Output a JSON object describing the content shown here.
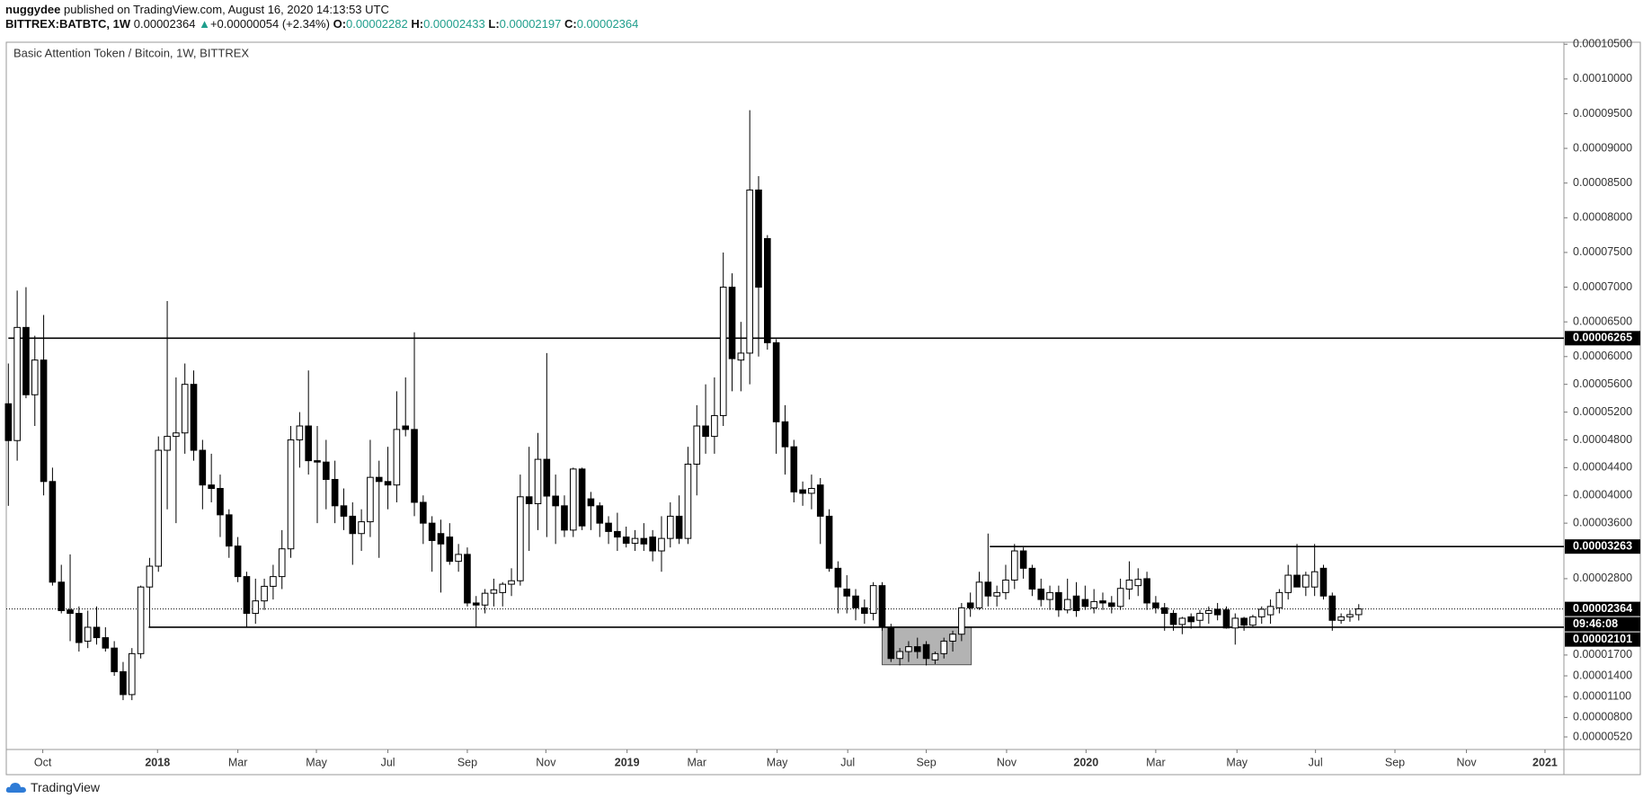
{
  "header": {
    "author": "nuggydee",
    "published": " published on TradingView.com, August 16, 2020 14:13:53 UTC",
    "symbol": "BITTREX:BATBTC, 1W",
    "last": "0.00002364",
    "change_arrow": "▲",
    "change": "+0.00000054 (+2.34%)",
    "ohlc": [
      {
        "label": "O:",
        "value": "0.00002282"
      },
      {
        "label": "H:",
        "value": "0.00002433"
      },
      {
        "label": "L:",
        "value": "0.00002197"
      },
      {
        "label": "C:",
        "value": "0.00002364"
      }
    ]
  },
  "chart_data": {
    "type": "candlestick",
    "title": "Basic Attention Token / Bitcoin, 1W, BITTREX",
    "up_color": "#ffffff",
    "down_color": "#000000",
    "open": [
      5.32e-05,
      4.79e-05,
      6.42e-05,
      5.45e-05,
      5.95e-05,
      4.2e-05,
      2.75e-05,
      2.35e-05,
      2.3e-05,
      1.9e-05,
      2.1e-05,
      1.95e-05,
      1.8e-05,
      1.46e-05,
      1.13e-05,
      1.72e-05,
      2.68e-05,
      2.98e-05,
      4.65e-05,
      4.85e-05,
      4.9e-05,
      5.6e-05,
      4.65e-05,
      4.15e-05,
      4.1e-05,
      3.72e-05,
      3.27e-05,
      2.83e-05,
      2.3e-05,
      2.48e-05,
      2.69e-05,
      2.83e-05,
      3.23e-05,
      4.8e-05,
      5e-05,
      4.5e-05,
      4.48e-05,
      4.23e-05,
      3.85e-05,
      3.7e-05,
      3.45e-05,
      3.62e-05,
      4.26e-05,
      4.2e-05,
      4.15e-05,
      5e-05,
      4.95e-05,
      3.9e-05,
      3.6e-05,
      3.45e-05,
      3.4e-05,
      3.05e-05,
      3.15e-05,
      2.45e-05,
      2.42e-05,
      2.59e-05,
      2.6e-05,
      2.72e-05,
      2.77e-05,
      3.98e-05,
      3.88e-05,
      4.52e-05,
      3.99e-05,
      3.85e-05,
      3.5e-05,
      4.38e-05,
      3.95e-05,
      3.85e-05,
      3.6e-05,
      3.48e-05,
      3.4e-05,
      3.31e-05,
      3.38e-05,
      3.4e-05,
      3.2e-05,
      3.38e-05,
      3.7e-05,
      3.38e-05,
      4.45e-05,
      5e-05,
      4.85e-05,
      5.15e-05,
      7e-05,
      5.95e-05,
      6.05e-05,
      8.4e-05,
      7.7e-05,
      6.2e-05,
      5.06e-05,
      4.7e-05,
      4.08e-05,
      4.03e-05,
      4.15e-05,
      3.7e-05,
      2.95e-05,
      2.65e-05,
      2.55e-05,
      2.38e-05,
      2.3e-05,
      2.7e-05,
      2.1e-05,
      1.65e-05,
      1.75e-05,
      1.82e-05,
      1.85e-05,
      1.63e-05,
      1.72e-05,
      1.9e-05,
      2e-05,
      2.45e-05,
      2.38e-05,
      2.75e-05,
      2.55e-05,
      2.6e-05,
      2.78e-05,
      3.2e-05,
      2.95e-05,
      2.65e-05,
      2.5e-05,
      2.6e-05,
      2.35e-05,
      2.55e-05,
      2.5e-05,
      2.38e-05,
      2.48e-05,
      2.45e-05,
      2.4e-05,
      2.65e-05,
      2.7e-05,
      2.8e-05,
      2.45e-05,
      2.38e-05,
      2.3e-05,
      2.14e-05,
      2.25e-05,
      2.2e-05,
      2.3e-05,
      2.36e-05,
      2.35e-05,
      2.09e-05,
      2.23e-05,
      2.13e-05,
      2.25e-05,
      2.28e-05,
      2.38e-05,
      2.6e-05,
      2.85e-05,
      2.68e-05,
      2.68e-05,
      2.95e-05,
      2.55e-05,
      2.2e-05,
      2.25e-05,
      2.282e-05
    ],
    "high": [
      5.9e-05,
      6.95e-05,
      7e-05,
      6.3e-05,
      6.6e-05,
      4.4e-05,
      3e-05,
      3.15e-05,
      2.4e-05,
      2.34e-05,
      2.4e-05,
      2.1e-05,
      1.9e-05,
      1.6e-05,
      1.8e-05,
      2.7e-05,
      3.1e-05,
      4.85e-05,
      6.8e-05,
      5.7e-05,
      5.9e-05,
      5.8e-05,
      4.8e-05,
      4.6e-05,
      4.3e-05,
      3.8e-05,
      3.4e-05,
      2.9e-05,
      2.8e-05,
      2.8e-05,
      3e-05,
      3.5e-05,
      5e-05,
      5.2e-05,
      5.8e-05,
      5e-05,
      4.8e-05,
      4.5e-05,
      4.1e-05,
      3.9e-05,
      3.8e-05,
      4.8e-05,
      4.5e-05,
      4.7e-05,
      5.5e-05,
      5.7e-05,
      6.35e-05,
      4e-05,
      3.7e-05,
      3.65e-05,
      3.6e-05,
      3.3e-05,
      3.25e-05,
      2.55e-05,
      2.65e-05,
      2.8e-05,
      2.75e-05,
      2.95e-05,
      4.3e-05,
      4.7e-05,
      4.9e-05,
      6.05e-05,
      4.3e-05,
      4e-05,
      4.4e-05,
      4.4e-05,
      4.05e-05,
      3.9e-05,
      3.7e-05,
      3.75e-05,
      3.55e-05,
      3.5e-05,
      3.6e-05,
      3.5e-05,
      3.7e-05,
      3.9e-05,
      4e-05,
      4.7e-05,
      5.3e-05,
      5.6e-05,
      5.7e-05,
      7.5e-05,
      7.2e-05,
      6.5e-05,
      9.55e-05,
      8.6e-05,
      7.75e-05,
      6.25e-05,
      5.3e-05,
      4.8e-05,
      4.2e-05,
      4.3e-05,
      4.25e-05,
      3.8e-05,
      3.05e-05,
      2.85e-05,
      2.65e-05,
      2.5e-05,
      2.75e-05,
      2.75e-05,
      2.15e-05,
      1.8e-05,
      1.9e-05,
      1.95e-05,
      1.9e-05,
      1.75e-05,
      1.95e-05,
      2.05e-05,
      2.45e-05,
      2.6e-05,
      2.9e-05,
      3.45e-05,
      2.7e-05,
      3e-05,
      3.3e-05,
      3.25e-05,
      3e-05,
      2.8e-05,
      2.7e-05,
      2.7e-05,
      2.8e-05,
      2.75e-05,
      2.7e-05,
      2.65e-05,
      2.6e-05,
      2.55e-05,
      2.8e-05,
      3.05e-05,
      2.95e-05,
      2.9e-05,
      2.55e-05,
      2.45e-05,
      2.35e-05,
      2.25e-05,
      2.3e-05,
      2.35e-05,
      2.4e-05,
      2.45e-05,
      2.4e-05,
      2.3e-05,
      2.25e-05,
      2.28e-05,
      2.4e-05,
      2.5e-05,
      2.65e-05,
      3e-05,
      3.3e-05,
      2.9e-05,
      3.3e-05,
      3e-05,
      2.6e-05,
      2.3e-05,
      2.35e-05,
      2.433e-05
    ],
    "low": [
      3.85e-05,
      4.5e-05,
      5.4e-05,
      5e-05,
      4e-05,
      2.7e-05,
      2.3e-05,
      1.9e-05,
      1.75e-05,
      1.8e-05,
      1.85e-05,
      1.75e-05,
      1.4e-05,
      1.05e-05,
      1.05e-05,
      1.65e-05,
      2.1e-05,
      2.9e-05,
      3.8e-05,
      3.6e-05,
      4.6e-05,
      4.5e-05,
      3.8e-05,
      3.9e-05,
      3.4e-05,
      3.1e-05,
      2.75e-05,
      2.1e-05,
      2.15e-05,
      2.35e-05,
      2.5e-05,
      2.65e-05,
      3.1e-05,
      4.4e-05,
      4.3e-05,
      3.6e-05,
      3.8e-05,
      3.6e-05,
      3.5e-05,
      3e-05,
      3.2e-05,
      3.4e-05,
      3.1e-05,
      3.8e-05,
      3.9e-05,
      4.85e-05,
      3.7e-05,
      3.3e-05,
      2.9e-05,
      2.6e-05,
      3e-05,
      2.9e-05,
      2.4e-05,
      2.1e-05,
      2.3e-05,
      2.4e-05,
      2.4e-05,
      2.55e-05,
      2.7e-05,
      3.2e-05,
      3.5e-05,
      3.4e-05,
      3.3e-05,
      3.4e-05,
      3.4e-05,
      3.5e-05,
      3.5e-05,
      3.4e-05,
      3.3e-05,
      3.2e-05,
      3.25e-05,
      3.2e-05,
      3.2e-05,
      3.05e-05,
      2.9e-05,
      3.25e-05,
      3.3e-05,
      3.3e-05,
      4e-05,
      4.6e-05,
      4.6e-05,
      5e-05,
      5.5e-05,
      5.5e-05,
      5.6e-05,
      6e-05,
      6.1e-05,
      4.6e-05,
      4.3e-05,
      3.9e-05,
      3.85e-05,
      3.8e-05,
      3.3e-05,
      2.9e-05,
      2.3e-05,
      2.3e-05,
      2.2e-05,
      2.15e-05,
      2.2e-05,
      2.05e-05,
      1.6e-05,
      1.55e-05,
      1.6e-05,
      1.65e-05,
      1.55e-05,
      1.57e-05,
      1.65e-05,
      1.75e-05,
      1.9e-05,
      2.25e-05,
      2.35e-05,
      2.4e-05,
      2.4e-05,
      2.5e-05,
      2.65e-05,
      2.8e-05,
      2.55e-05,
      2.4e-05,
      2.35e-05,
      2.25e-05,
      2.3e-05,
      2.25e-05,
      2.35e-05,
      2.3e-05,
      2.35e-05,
      2.3e-05,
      2.35e-05,
      2.5e-05,
      2.55e-05,
      2.35e-05,
      2.3e-05,
      2.05e-05,
      2.05e-05,
      2e-05,
      2.08e-05,
      2.1e-05,
      2.15e-05,
      2.2e-05,
      2.08e-05,
      1.85e-05,
      2.05e-05,
      2.1e-05,
      2.15e-05,
      2.15e-05,
      2.3e-05,
      2.5e-05,
      2.7e-05,
      2.55e-05,
      2.55e-05,
      2.5e-05,
      2.05e-05,
      2.15e-05,
      2.18e-05,
      2.197e-05
    ],
    "close": [
      4.79e-05,
      6.42e-05,
      5.45e-05,
      5.95e-05,
      4.2e-05,
      2.75e-05,
      2.34e-05,
      2.3e-05,
      1.88e-05,
      2.1e-05,
      1.95e-05,
      1.8e-05,
      1.46e-05,
      1.13e-05,
      1.72e-05,
      2.68e-05,
      2.98e-05,
      4.65e-05,
      4.85e-05,
      4.9e-05,
      5.6e-05,
      4.65e-05,
      4.15e-05,
      4.1e-05,
      3.72e-05,
      3.27e-05,
      2.83e-05,
      2.3e-05,
      2.48e-05,
      2.69e-05,
      2.83e-05,
      3.23e-05,
      4.8e-05,
      5e-05,
      4.5e-05,
      4.48e-05,
      4.23e-05,
      3.85e-05,
      3.7e-05,
      3.45e-05,
      3.62e-05,
      4.26e-05,
      4.2e-05,
      4.15e-05,
      4.95e-05,
      4.95e-05,
      3.9e-05,
      3.6e-05,
      3.35e-05,
      3.3e-05,
      3.05e-05,
      3.15e-05,
      2.45e-05,
      2.42e-05,
      2.59e-05,
      2.64e-05,
      2.72e-05,
      2.77e-05,
      3.98e-05,
      3.88e-05,
      4.52e-05,
      3.99e-05,
      3.85e-05,
      3.5e-05,
      4.38e-05,
      3.56e-05,
      3.85e-05,
      3.6e-05,
      3.48e-05,
      3.4e-05,
      3.31e-05,
      3.38e-05,
      3.3e-05,
      3.2e-05,
      3.38e-05,
      3.7e-05,
      3.38e-05,
      4.45e-05,
      5e-05,
      4.85e-05,
      5.15e-05,
      7e-05,
      5.97e-05,
      6.05e-05,
      8.4e-05,
      7e-05,
      6.2e-05,
      5.06e-05,
      4.7e-05,
      4.05e-05,
      4.03e-05,
      4.1e-05,
      3.7e-05,
      2.95e-05,
      2.68e-05,
      2.55e-05,
      2.38e-05,
      2.3e-05,
      2.7e-05,
      2.1e-05,
      1.65e-05,
      1.75e-05,
      1.82e-05,
      1.75e-05,
      1.65e-05,
      1.72e-05,
      1.9e-05,
      2e-05,
      2.38e-05,
      2.38e-05,
      2.75e-05,
      2.55e-05,
      2.6e-05,
      2.78e-05,
      3.2e-05,
      2.95e-05,
      2.65e-05,
      2.5e-05,
      2.6e-05,
      2.35e-05,
      2.5e-05,
      2.34e-05,
      2.4e-05,
      2.47e-05,
      2.45e-05,
      2.4e-05,
      2.66e-05,
      2.78e-05,
      2.79e-05,
      2.45e-05,
      2.38e-05,
      2.3e-05,
      2.14e-05,
      2.23e-05,
      2.18e-05,
      2.3e-05,
      2.34e-05,
      2.28e-05,
      2.09e-05,
      2.23e-05,
      2.13e-05,
      2.25e-05,
      2.36e-05,
      2.4e-05,
      2.6e-05,
      2.85e-05,
      2.68e-05,
      2.85e-05,
      2.9e-05,
      2.55e-05,
      2.2e-05,
      2.25e-05,
      2.282e-05,
      2.364e-05
    ],
    "ylim": [
      3.39e-06,
      0.00010529
    ],
    "yticks": [
      {
        "value": 0.000105,
        "label": "0.00010500"
      },
      {
        "value": 0.0001,
        "label": "0.00010000"
      },
      {
        "value": 9.5e-05,
        "label": "0.00009500"
      },
      {
        "value": 9e-05,
        "label": "0.00009000"
      },
      {
        "value": 8.5e-05,
        "label": "0.00008500"
      },
      {
        "value": 8e-05,
        "label": "0.00008000"
      },
      {
        "value": 7.5e-05,
        "label": "0.00007500"
      },
      {
        "value": 7e-05,
        "label": "0.00007000"
      },
      {
        "value": 6.5e-05,
        "label": "0.00006500"
      },
      {
        "value": 6e-05,
        "label": "0.00006000"
      },
      {
        "value": 5.6e-05,
        "label": "0.00005600"
      },
      {
        "value": 5.2e-05,
        "label": "0.00005200"
      },
      {
        "value": 4.8e-05,
        "label": "0.00004800"
      },
      {
        "value": 4.4e-05,
        "label": "0.00004400"
      },
      {
        "value": 4e-05,
        "label": "0.00004000"
      },
      {
        "value": 3.6e-05,
        "label": "0.00003600"
      },
      {
        "value": 2.8e-05,
        "label": "0.00002800"
      },
      {
        "value": 1.7e-05,
        "label": "0.00001700"
      },
      {
        "value": 1.4e-05,
        "label": "0.00001400"
      },
      {
        "value": 1.1e-05,
        "label": "0.00001100"
      },
      {
        "value": 8e-06,
        "label": "0.00000800"
      },
      {
        "value": 5.2e-06,
        "label": "0.00000520"
      }
    ],
    "xticks": [
      {
        "value": 3.9,
        "label": "Oct"
      },
      {
        "value": 16.9,
        "label": "2018"
      },
      {
        "value": 26.0,
        "label": "Mar"
      },
      {
        "value": 34.9,
        "label": "May"
      },
      {
        "value": 43.0,
        "label": "Jul"
      },
      {
        "value": 52.0,
        "label": "Sep"
      },
      {
        "value": 60.9,
        "label": "Nov"
      },
      {
        "value": 70.1,
        "label": "2019"
      },
      {
        "value": 78.0,
        "label": "Mar"
      },
      {
        "value": 87.1,
        "label": "May"
      },
      {
        "value": 95.1,
        "label": "Jul"
      },
      {
        "value": 104.0,
        "label": "Sep"
      },
      {
        "value": 113.1,
        "label": "Nov"
      },
      {
        "value": 122.1,
        "label": "2020"
      },
      {
        "value": 130.0,
        "label": "Mar"
      },
      {
        "value": 139.2,
        "label": "May"
      },
      {
        "value": 148.1,
        "label": "Jul"
      },
      {
        "value": 157.1,
        "label": "Sep"
      },
      {
        "value": 165.2,
        "label": "Nov"
      },
      {
        "value": 174.1,
        "label": "2021"
      }
    ],
    "levels": [
      {
        "value": 6.265e-05,
        "label": "0.00006265",
        "from": 0
      },
      {
        "value": 3.263e-05,
        "label": "0.00003263",
        "from": 111.2
      },
      {
        "value": 2.101e-05,
        "label": "0.00002101",
        "from": 15.9
      }
    ],
    "last_price": {
      "value": 2.364e-05,
      "label": "0.00002364",
      "countdown": "09:46:08"
    },
    "highlight_box": {
      "x": [
        99.0,
        109.1
      ],
      "y": [
        1.56e-05,
        2.101e-05
      ],
      "color": "#a6a6a6"
    }
  },
  "footer": {
    "brand": "TradingView"
  }
}
